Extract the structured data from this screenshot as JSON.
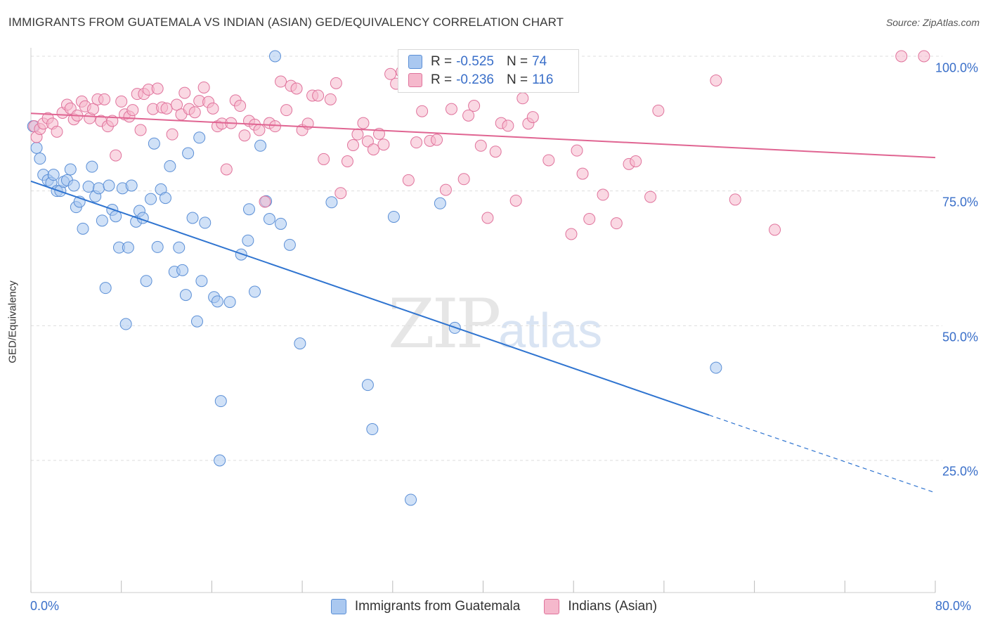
{
  "title": "IMMIGRANTS FROM GUATEMALA VS INDIAN (ASIAN) GED/EQUIVALENCY CORRELATION CHART",
  "source": "Source: ZipAtlas.com",
  "watermark": {
    "zip": "ZIP",
    "atlas": "atlas"
  },
  "colors": {
    "blue": "#5b8fd6",
    "blue_fill": "#aac8f0",
    "blue_line": "#2f74d0",
    "pink": "#e0739c",
    "pink_fill": "#f5b8cc",
    "pink_line": "#e06592",
    "axis_text": "#3a6fc9",
    "grid": "#dddddd"
  },
  "legend": {
    "rows": [
      {
        "r_label": "R = ",
        "r_value": "-0.525",
        "n_label": "N = ",
        "n_value": "74"
      },
      {
        "r_label": "R = ",
        "r_value": "-0.236",
        "n_label": "N = ",
        "n_value": "116"
      }
    ]
  },
  "bottom_legend": [
    "Immigrants from Guatemala",
    "Indians (Asian)"
  ],
  "chart_data": {
    "type": "scatter",
    "title": "IMMIGRANTS FROM GUATEMALA VS INDIAN (ASIAN) GED/EQUIVALENCY CORRELATION CHART",
    "xlabel": "",
    "ylabel": "GED/Equivalency",
    "xlim": [
      0,
      80
    ],
    "ylim": [
      2,
      102
    ],
    "x_tick_labels": [
      "0.0%",
      "80.0%"
    ],
    "y_ticks": [
      25,
      50,
      75,
      100
    ],
    "y_tick_labels": [
      "25.0%",
      "50.0%",
      "75.0%",
      "100.0%"
    ],
    "grid": "horizontal dashed",
    "legend_placement": "top-center",
    "series": [
      {
        "name": "Immigrants from Guatemala",
        "color": "#5b8fd6",
        "trend": {
          "x0": 0,
          "y0": 76.8,
          "x1": 60,
          "y1": 33.4,
          "dashed_to_x": 80,
          "dashed_to_y": 19.0
        },
        "points": [
          [
            0.2,
            87
          ],
          [
            0.5,
            83
          ],
          [
            0.8,
            81
          ],
          [
            1.1,
            78
          ],
          [
            1.5,
            77
          ],
          [
            1.8,
            76.5
          ],
          [
            2.0,
            78
          ],
          [
            2.3,
            75
          ],
          [
            2.6,
            75
          ],
          [
            2.9,
            76.7
          ],
          [
            3.2,
            77
          ],
          [
            3.5,
            79
          ],
          [
            3.8,
            76
          ],
          [
            4.0,
            72
          ],
          [
            4.3,
            73
          ],
          [
            4.6,
            68
          ],
          [
            5.1,
            75.8
          ],
          [
            5.4,
            79.5
          ],
          [
            5.7,
            74
          ],
          [
            6.0,
            75.5
          ],
          [
            6.3,
            69.5
          ],
          [
            6.6,
            57
          ],
          [
            6.9,
            76
          ],
          [
            7.2,
            71.5
          ],
          [
            7.5,
            70.3
          ],
          [
            7.8,
            64.5
          ],
          [
            8.1,
            75.5
          ],
          [
            8.4,
            50.3
          ],
          [
            8.6,
            64.5
          ],
          [
            8.9,
            76
          ],
          [
            9.3,
            69.3
          ],
          [
            9.6,
            71.3
          ],
          [
            9.9,
            70
          ],
          [
            10.2,
            58.3
          ],
          [
            10.6,
            73.5
          ],
          [
            10.9,
            83.8
          ],
          [
            11.2,
            64.6
          ],
          [
            11.5,
            75.3
          ],
          [
            11.9,
            73.7
          ],
          [
            12.3,
            79.6
          ],
          [
            12.7,
            60
          ],
          [
            13.1,
            64.5
          ],
          [
            13.4,
            60.3
          ],
          [
            13.7,
            55.7
          ],
          [
            13.9,
            82
          ],
          [
            14.3,
            70
          ],
          [
            14.7,
            50.8
          ],
          [
            14.9,
            84.9
          ],
          [
            15.1,
            58.3
          ],
          [
            15.4,
            69.1
          ],
          [
            16.2,
            55.3
          ],
          [
            16.5,
            54.5
          ],
          [
            16.8,
            36
          ],
          [
            16.7,
            25
          ],
          [
            17.6,
            54.4
          ],
          [
            18.6,
            63.2
          ],
          [
            19.3,
            71.6
          ],
          [
            19.2,
            65.8
          ],
          [
            19.8,
            56.3
          ],
          [
            20.3,
            83.4
          ],
          [
            20.8,
            73.1
          ],
          [
            21.1,
            69.8
          ],
          [
            21.6,
            100
          ],
          [
            22.1,
            68.9
          ],
          [
            22.9,
            65
          ],
          [
            23.8,
            46.7
          ],
          [
            26.6,
            72.9
          ],
          [
            29.8,
            39
          ],
          [
            30.2,
            30.8
          ],
          [
            32.1,
            70.2
          ],
          [
            33.6,
            17.7
          ],
          [
            36.2,
            72.7
          ],
          [
            37.5,
            49.6
          ],
          [
            60.6,
            42.2
          ]
        ]
      },
      {
        "name": "Indians (Asian)",
        "color": "#e0739c",
        "trend": {
          "x0": 0,
          "y0": 89.4,
          "x1": 80,
          "y1": 81.2
        },
        "points": [
          [
            0.3,
            87
          ],
          [
            0.5,
            85
          ],
          [
            0.8,
            86.5
          ],
          [
            1.1,
            87.5
          ],
          [
            1.5,
            88.5
          ],
          [
            1.9,
            87.5
          ],
          [
            2.3,
            86
          ],
          [
            2.8,
            89.5
          ],
          [
            3.2,
            91
          ],
          [
            3.5,
            90.3
          ],
          [
            3.8,
            88.3
          ],
          [
            4.1,
            89
          ],
          [
            4.5,
            91.6
          ],
          [
            4.8,
            90.7
          ],
          [
            5.2,
            88.5
          ],
          [
            5.5,
            90.2
          ],
          [
            5.9,
            92
          ],
          [
            6.2,
            88
          ],
          [
            6.5,
            92
          ],
          [
            6.8,
            87
          ],
          [
            7.2,
            88
          ],
          [
            7.5,
            81.6
          ],
          [
            8.0,
            91.6
          ],
          [
            8.3,
            89.2
          ],
          [
            8.7,
            88.8
          ],
          [
            9.0,
            90
          ],
          [
            9.4,
            93
          ],
          [
            9.7,
            86.3
          ],
          [
            10.0,
            93
          ],
          [
            10.4,
            93.8
          ],
          [
            10.8,
            90.2
          ],
          [
            11.2,
            94
          ],
          [
            11.6,
            90.5
          ],
          [
            12.0,
            90.3
          ],
          [
            12.5,
            85.5
          ],
          [
            12.9,
            91
          ],
          [
            13.3,
            89.2
          ],
          [
            13.6,
            93.2
          ],
          [
            14.0,
            90.2
          ],
          [
            14.5,
            89.6
          ],
          [
            14.9,
            91.7
          ],
          [
            15.3,
            94.2
          ],
          [
            15.7,
            91.5
          ],
          [
            16.1,
            90.3
          ],
          [
            16.5,
            87
          ],
          [
            16.9,
            87.5
          ],
          [
            17.3,
            79
          ],
          [
            17.7,
            87.6
          ],
          [
            18.1,
            91.8
          ],
          [
            18.5,
            90.8
          ],
          [
            18.9,
            85.3
          ],
          [
            19.3,
            88
          ],
          [
            19.8,
            87.3
          ],
          [
            20.2,
            86.3
          ],
          [
            20.7,
            73
          ],
          [
            21.1,
            87.6
          ],
          [
            21.6,
            87
          ],
          [
            22.1,
            95.3
          ],
          [
            22.6,
            90
          ],
          [
            23.0,
            94.5
          ],
          [
            23.5,
            94
          ],
          [
            24.0,
            86.3
          ],
          [
            24.5,
            87.5
          ],
          [
            24.9,
            92.7
          ],
          [
            25.4,
            92.7
          ],
          [
            25.9,
            80.9
          ],
          [
            26.5,
            92
          ],
          [
            27.0,
            95
          ],
          [
            27.4,
            74.6
          ],
          [
            28.0,
            80.5
          ],
          [
            28.5,
            83.5
          ],
          [
            28.9,
            85.5
          ],
          [
            29.4,
            87.6
          ],
          [
            29.8,
            84.2
          ],
          [
            30.3,
            82.7
          ],
          [
            30.8,
            85.6
          ],
          [
            31.2,
            83.6
          ],
          [
            31.8,
            96.7
          ],
          [
            32.3,
            94.9
          ],
          [
            32.8,
            97.1
          ],
          [
            33.4,
            77
          ],
          [
            34.1,
            84
          ],
          [
            34.6,
            89.8
          ],
          [
            34.9,
            100
          ],
          [
            35.3,
            84.3
          ],
          [
            35.9,
            84.5
          ],
          [
            36.7,
            75.2
          ],
          [
            37.2,
            90.2
          ],
          [
            38.3,
            77.2
          ],
          [
            38.7,
            89
          ],
          [
            39.2,
            90.8
          ],
          [
            39.8,
            83.4
          ],
          [
            40.4,
            70
          ],
          [
            41.1,
            82.3
          ],
          [
            41.6,
            87.6
          ],
          [
            42.2,
            87.1
          ],
          [
            42.9,
            73.2
          ],
          [
            43.5,
            92.2
          ],
          [
            44.0,
            87.5
          ],
          [
            44.4,
            88.7
          ],
          [
            45.8,
            80.7
          ],
          [
            47.8,
            67
          ],
          [
            48.3,
            82.5
          ],
          [
            48.8,
            78.2
          ],
          [
            49.4,
            69.8
          ],
          [
            50.6,
            74.3
          ],
          [
            51.8,
            69
          ],
          [
            52.9,
            80
          ],
          [
            53.5,
            80.5
          ],
          [
            54.8,
            73.9
          ],
          [
            55.5,
            89.9
          ],
          [
            60.6,
            95.5
          ],
          [
            62.3,
            73.4
          ],
          [
            65.8,
            67.8
          ],
          [
            77.0,
            100
          ],
          [
            79.0,
            100
          ]
        ]
      }
    ]
  }
}
